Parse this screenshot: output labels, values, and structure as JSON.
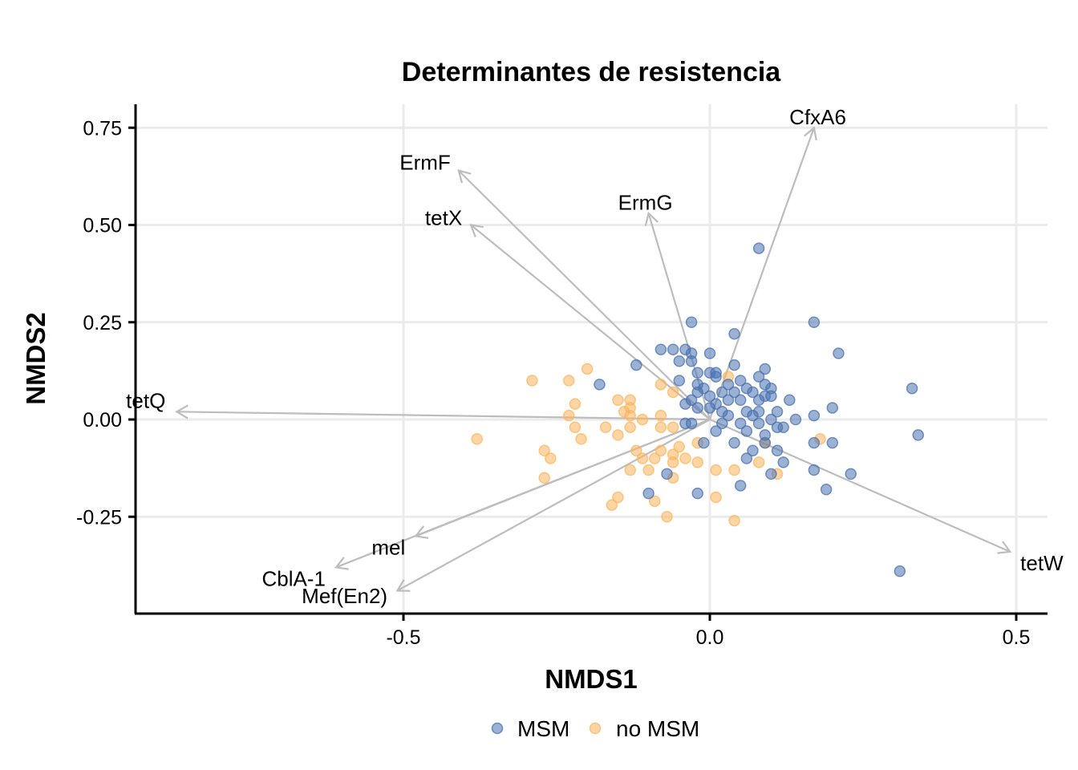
{
  "chart_data": {
    "type": "scatter",
    "title": "Determinantes de resistencia",
    "xlabel": "NMDS1",
    "ylabel": "NMDS2",
    "xlim": [
      -0.94,
      0.55
    ],
    "ylim": [
      -0.5,
      0.8
    ],
    "x_ticks": [
      -0.5,
      0.0,
      0.5
    ],
    "x_tick_labels": [
      "-0.5",
      "0.0",
      "0.5"
    ],
    "y_ticks": [
      -0.25,
      0.0,
      0.25,
      0.5,
      0.75
    ],
    "y_tick_labels": [
      "-0.25",
      "0.00",
      "0.25",
      "0.50",
      "0.75"
    ],
    "grid": true,
    "legend_position": "bottom",
    "colors": {
      "MSM": "#4a72b2",
      "no MSM": "#fdb45c",
      "vector": "#bdbdbd"
    },
    "series": [
      {
        "name": "MSM",
        "points": [
          [
            0.08,
            0.44
          ],
          [
            0.17,
            0.25
          ],
          [
            -0.03,
            0.25
          ],
          [
            0.04,
            0.22
          ],
          [
            0.21,
            0.17
          ],
          [
            -0.08,
            0.18
          ],
          [
            -0.06,
            0.18
          ],
          [
            -0.04,
            0.18
          ],
          [
            -0.03,
            0.17
          ],
          [
            0.0,
            0.17
          ],
          [
            -0.12,
            0.14
          ],
          [
            -0.05,
            0.15
          ],
          [
            -0.03,
            0.15
          ],
          [
            0.04,
            0.14
          ],
          [
            0.09,
            0.13
          ],
          [
            -0.02,
            0.12
          ],
          [
            0.0,
            0.12
          ],
          [
            0.01,
            0.12
          ],
          [
            -0.18,
            0.09
          ],
          [
            -0.05,
            0.1
          ],
          [
            0.01,
            0.11
          ],
          [
            0.05,
            0.1
          ],
          [
            0.08,
            0.11
          ],
          [
            0.09,
            0.09
          ],
          [
            -0.02,
            0.09
          ],
          [
            -0.01,
            0.08
          ],
          [
            0.03,
            0.09
          ],
          [
            0.06,
            0.08
          ],
          [
            0.1,
            0.08
          ],
          [
            0.33,
            0.08
          ],
          [
            -0.02,
            0.07
          ],
          [
            0.0,
            0.06
          ],
          [
            0.02,
            0.07
          ],
          [
            0.04,
            0.07
          ],
          [
            0.07,
            0.07
          ],
          [
            0.09,
            0.06
          ],
          [
            0.1,
            0.06
          ],
          [
            -0.04,
            0.04
          ],
          [
            -0.03,
            0.05
          ],
          [
            0.01,
            0.04
          ],
          [
            0.03,
            0.05
          ],
          [
            0.05,
            0.05
          ],
          [
            0.08,
            0.05
          ],
          [
            0.13,
            0.05
          ],
          [
            0.2,
            0.03
          ],
          [
            -0.02,
            0.03
          ],
          [
            0.0,
            0.03
          ],
          [
            0.02,
            0.02
          ],
          [
            0.06,
            0.02
          ],
          [
            0.08,
            0.02
          ],
          [
            0.11,
            0.02
          ],
          [
            0.03,
            0.01
          ],
          [
            0.07,
            0.01
          ],
          [
            0.1,
            0.0
          ],
          [
            0.14,
            0.0
          ],
          [
            0.17,
            0.01
          ],
          [
            -0.03,
            -0.01
          ],
          [
            -0.04,
            -0.01
          ],
          [
            0.02,
            -0.01
          ],
          [
            0.05,
            -0.01
          ],
          [
            0.08,
            -0.01
          ],
          [
            0.12,
            -0.02
          ],
          [
            0.01,
            -0.03
          ],
          [
            0.06,
            -0.03
          ],
          [
            0.09,
            -0.04
          ],
          [
            0.11,
            -0.02
          ],
          [
            -0.01,
            -0.06
          ],
          [
            0.04,
            -0.06
          ],
          [
            0.09,
            -0.06
          ],
          [
            0.11,
            -0.08
          ],
          [
            0.17,
            -0.06
          ],
          [
            0.2,
            -0.06
          ],
          [
            0.34,
            -0.04
          ],
          [
            0.06,
            -0.1
          ],
          [
            0.07,
            -0.08
          ],
          [
            0.12,
            -0.11
          ],
          [
            0.17,
            -0.13
          ],
          [
            0.23,
            -0.14
          ],
          [
            0.1,
            -0.14
          ],
          [
            -0.07,
            -0.14
          ],
          [
            0.05,
            -0.17
          ],
          [
            0.19,
            -0.18
          ],
          [
            -0.1,
            -0.19
          ],
          [
            -0.02,
            -0.19
          ],
          [
            0.31,
            -0.39
          ]
        ]
      },
      {
        "name": "no MSM",
        "points": [
          [
            -0.29,
            0.1
          ],
          [
            -0.23,
            0.1
          ],
          [
            -0.2,
            0.13
          ],
          [
            -0.08,
            0.09
          ],
          [
            -0.06,
            0.07
          ],
          [
            0.03,
            0.11
          ],
          [
            -0.22,
            0.04
          ],
          [
            -0.15,
            0.05
          ],
          [
            -0.13,
            0.05
          ],
          [
            -0.13,
            0.03
          ],
          [
            -0.23,
            0.01
          ],
          [
            -0.14,
            0.02
          ],
          [
            -0.13,
            0.01
          ],
          [
            -0.11,
            0.0
          ],
          [
            -0.08,
            0.01
          ],
          [
            -0.22,
            -0.02
          ],
          [
            -0.17,
            -0.02
          ],
          [
            -0.13,
            -0.02
          ],
          [
            -0.08,
            -0.02
          ],
          [
            -0.06,
            -0.02
          ],
          [
            -0.38,
            -0.05
          ],
          [
            -0.21,
            -0.05
          ],
          [
            -0.15,
            -0.04
          ],
          [
            -0.12,
            -0.08
          ],
          [
            -0.08,
            -0.08
          ],
          [
            -0.05,
            -0.07
          ],
          [
            -0.02,
            -0.06
          ],
          [
            -0.27,
            -0.08
          ],
          [
            -0.26,
            -0.1
          ],
          [
            -0.11,
            -0.1
          ],
          [
            -0.09,
            -0.1
          ],
          [
            -0.06,
            -0.09
          ],
          [
            -0.06,
            -0.11
          ],
          [
            -0.04,
            -0.1
          ],
          [
            -0.02,
            -0.11
          ],
          [
            -0.13,
            -0.13
          ],
          [
            -0.1,
            -0.13
          ],
          [
            -0.06,
            -0.15
          ],
          [
            0.01,
            -0.13
          ],
          [
            0.04,
            -0.13
          ],
          [
            0.08,
            -0.11
          ],
          [
            0.11,
            -0.14
          ],
          [
            0.09,
            -0.06
          ],
          [
            0.18,
            -0.05
          ],
          [
            -0.27,
            -0.15
          ],
          [
            -0.15,
            -0.2
          ],
          [
            -0.16,
            -0.22
          ],
          [
            -0.09,
            -0.21
          ],
          [
            0.01,
            -0.2
          ],
          [
            -0.07,
            -0.25
          ],
          [
            0.04,
            -0.26
          ]
        ]
      }
    ],
    "vectors": [
      {
        "label": "CfxA6",
        "x": 0.17,
        "y": 0.75
      },
      {
        "label": "ErmF",
        "x": -0.41,
        "y": 0.64
      },
      {
        "label": "ErmG",
        "x": -0.1,
        "y": 0.53
      },
      {
        "label": "tetX",
        "x": -0.39,
        "y": 0.5
      },
      {
        "label": "tetQ",
        "x": -0.87,
        "y": 0.02
      },
      {
        "label": "tetW",
        "x": 0.49,
        "y": -0.34
      },
      {
        "label": "CblA-1",
        "x": -0.61,
        "y": -0.38
      },
      {
        "label": "mel",
        "x": -0.48,
        "y": -0.3
      },
      {
        "label": "Mef(En2)",
        "x": -0.51,
        "y": -0.44
      }
    ]
  }
}
